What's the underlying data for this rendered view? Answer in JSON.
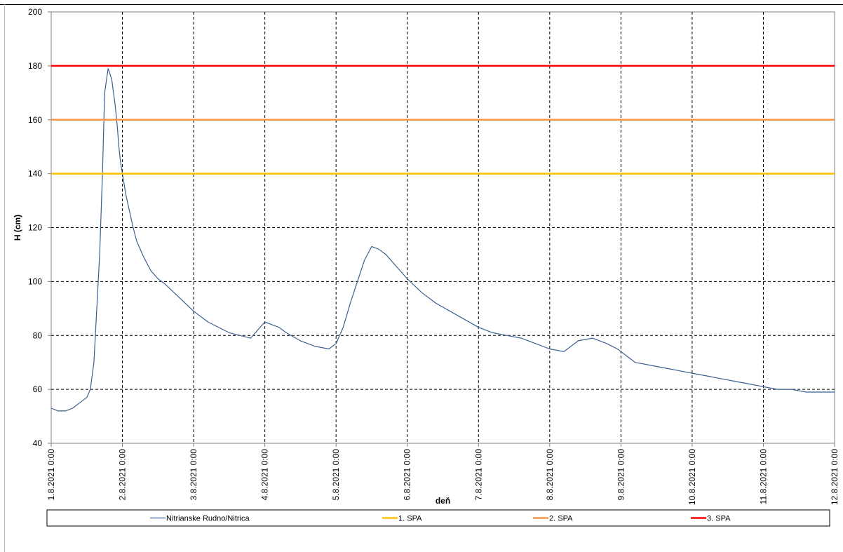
{
  "chart_data": {
    "type": "line",
    "title": "",
    "xlabel": "deň",
    "ylabel": "H (cm)",
    "ylim": [
      40,
      200
    ],
    "yticks": [
      40,
      60,
      80,
      100,
      120,
      140,
      160,
      180,
      200
    ],
    "xticks": [
      "1.8.2021 0:00",
      "2.8.2021 0:00",
      "3.8.2021 0:00",
      "4.8.2021 0:00",
      "5.8.2021 0:00",
      "6.8.2021 0:00",
      "7.8.2021 0:00",
      "8.8.2021 0:00",
      "9.8.2021 0:00",
      "10.8.2021 0:00",
      "11.8.2021 0:00",
      "12.8.2021 0:00"
    ],
    "xlim_days": [
      0,
      11
    ],
    "grid": true,
    "legend_position": "bottom",
    "series": [
      {
        "name": "Nitrianske Rudno/Nitrica",
        "color": "#3b5f8f",
        "x_days": [
          0,
          0.1,
          0.2,
          0.3,
          0.4,
          0.5,
          0.55,
          0.6,
          0.64,
          0.68,
          0.72,
          0.75,
          0.8,
          0.85,
          0.9,
          0.93,
          0.95,
          0.97,
          1.0,
          1.05,
          1.1,
          1.15,
          1.2,
          1.3,
          1.4,
          1.5,
          1.6,
          1.8,
          2.0,
          2.2,
          2.5,
          2.8,
          3.0,
          3.1,
          3.2,
          3.3,
          3.5,
          3.7,
          3.9,
          4.0,
          4.1,
          4.2,
          4.3,
          4.4,
          4.5,
          4.6,
          4.7,
          4.8,
          4.9,
          5.0,
          5.2,
          5.4,
          5.6,
          5.8,
          6.0,
          6.2,
          6.4,
          6.6,
          6.8,
          7.0,
          7.2,
          7.4,
          7.6,
          7.8,
          7.95,
          8.0,
          8.1,
          8.2,
          8.4,
          8.6,
          8.8,
          9.0,
          9.2,
          9.4,
          9.6,
          9.8,
          10.0,
          10.2,
          10.4,
          10.6,
          10.7,
          10.8,
          11.0
        ],
        "y": [
          53,
          52,
          52,
          53,
          55,
          57,
          60,
          70,
          90,
          110,
          140,
          170,
          179,
          175,
          165,
          157,
          150,
          145,
          140,
          132,
          126,
          120,
          115,
          109,
          104,
          101,
          99,
          94,
          89,
          85,
          81,
          79,
          85,
          84,
          83,
          81,
          78,
          76,
          75,
          77,
          83,
          92,
          100,
          108,
          113,
          112,
          110,
          107,
          104,
          101,
          96,
          92,
          89,
          86,
          83,
          81,
          80,
          79,
          77,
          75,
          74,
          78,
          79,
          77,
          75,
          74,
          72,
          70,
          69,
          68,
          67,
          66,
          65,
          64,
          63,
          62,
          61,
          60,
          60,
          59,
          59,
          59,
          59
        ]
      },
      {
        "name": "1. SPA",
        "color": "#ffc000",
        "constant": 140
      },
      {
        "name": "2. SPA",
        "color": "#f79646",
        "constant": 160
      },
      {
        "name": "3. SPA",
        "color": "#ff0000",
        "constant": 180
      }
    ]
  }
}
